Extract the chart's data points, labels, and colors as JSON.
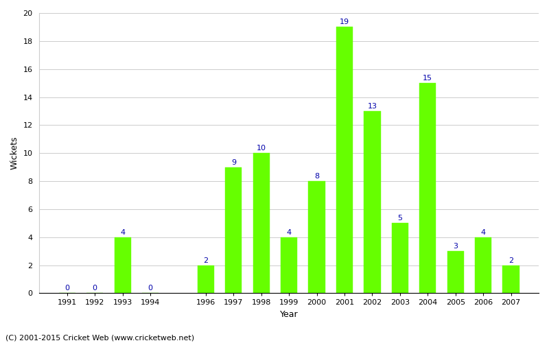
{
  "years": [
    1991,
    1992,
    1993,
    1994,
    1996,
    1997,
    1998,
    1999,
    2000,
    2001,
    2002,
    2003,
    2004,
    2005,
    2006,
    2007
  ],
  "wickets": [
    0,
    0,
    4,
    0,
    2,
    9,
    10,
    4,
    8,
    19,
    13,
    5,
    15,
    3,
    4,
    2
  ],
  "bar_color": "#66ff00",
  "bar_edge_color": "#66ff00",
  "label_color": "#0000aa",
  "xlabel": "Year",
  "ylabel": "Wickets",
  "ylim": [
    0,
    20
  ],
  "yticks": [
    0,
    2,
    4,
    6,
    8,
    10,
    12,
    14,
    16,
    18,
    20
  ],
  "background_color": "#ffffff",
  "grid_color": "#cccccc",
  "footer": "(C) 2001-2015 Cricket Web (www.cricketweb.net)",
  "label_fontsize": 9,
  "tick_fontsize": 8,
  "footer_fontsize": 8,
  "annotation_fontsize": 8,
  "bar_width": 0.6
}
